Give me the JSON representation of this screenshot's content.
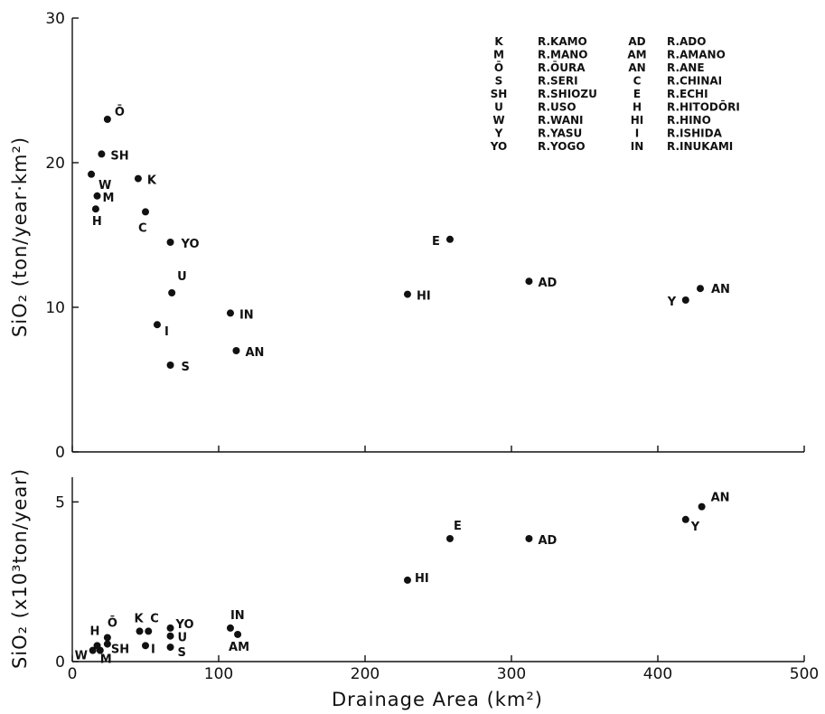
{
  "chart_data": [
    {
      "type": "scatter",
      "name": "top-panel",
      "ylabel": "SiO₂ (ton/year·km²)",
      "xlim": [
        0,
        500
      ],
      "ylim": [
        0,
        30
      ],
      "x_ticks": [
        "0",
        "100",
        "200",
        "300",
        "400",
        "500"
      ],
      "y_ticks": [
        "0",
        "10",
        "20",
        "30"
      ],
      "grid": false,
      "points": [
        {
          "label": "Ō",
          "x": 24,
          "y": 23.0
        },
        {
          "label": "SH",
          "x": 20,
          "y": 20.6
        },
        {
          "label": "W",
          "x": 13,
          "y": 19.2
        },
        {
          "label": "K",
          "x": 45,
          "y": 18.9
        },
        {
          "label": "M",
          "x": 17,
          "y": 17.7
        },
        {
          "label": "H",
          "x": 16,
          "y": 16.8
        },
        {
          "label": "C",
          "x": 50,
          "y": 16.6
        },
        {
          "label": "YO",
          "x": 67,
          "y": 14.5
        },
        {
          "label": "E",
          "x": 258,
          "y": 14.7
        },
        {
          "label": "AD",
          "x": 312,
          "y": 11.8
        },
        {
          "label": "AN",
          "x": 429,
          "y": 11.3
        },
        {
          "label": "U",
          "x": 68,
          "y": 11.0
        },
        {
          "label": "HI",
          "x": 229,
          "y": 10.9
        },
        {
          "label": "Y",
          "x": 419,
          "y": 10.5
        },
        {
          "label": "IN",
          "x": 108,
          "y": 9.6
        },
        {
          "label": "I",
          "x": 58,
          "y": 8.8
        },
        {
          "label": "AN",
          "x": 112,
          "y": 7.0
        },
        {
          "label": "S",
          "x": 67,
          "y": 6.0
        }
      ],
      "legend": {
        "placement": "top-right",
        "entries": [
          {
            "code": "K",
            "river": "R.KAMO"
          },
          {
            "code": "M",
            "river": "R.MANO"
          },
          {
            "code": "Ō",
            "river": "R.ŌURA"
          },
          {
            "code": "S",
            "river": "R.SERI"
          },
          {
            "code": "SH",
            "river": "R.SHIOZU"
          },
          {
            "code": "U",
            "river": "R.USO"
          },
          {
            "code": "W",
            "river": "R.WANI"
          },
          {
            "code": "Y",
            "river": "R.YASU"
          },
          {
            "code": "YO",
            "river": "R.YOGO"
          },
          {
            "code": "AD",
            "river": "R.ADO"
          },
          {
            "code": "AM",
            "river": "R.AMANO"
          },
          {
            "code": "AN",
            "river": "R.ANE"
          },
          {
            "code": "C",
            "river": "R.CHINAI"
          },
          {
            "code": "E",
            "river": "R.ECHI"
          },
          {
            "code": "H",
            "river": "R.HITODŌRI"
          },
          {
            "code": "HI",
            "river": "R.HINO"
          },
          {
            "code": "I",
            "river": "R.ISHIDA"
          },
          {
            "code": "IN",
            "river": "R.INUKAMI"
          }
        ]
      }
    },
    {
      "type": "scatter",
      "name": "bottom-panel",
      "xlabel": "Drainage Area (km²)",
      "ylabel": "SiO₂ (x10³ton/year)",
      "xlim": [
        0,
        500
      ],
      "ylim": [
        0,
        6
      ],
      "x_ticks": [
        "0",
        "100",
        "200",
        "300",
        "400",
        "500"
      ],
      "y_ticks": [
        "0",
        "5"
      ],
      "grid": false,
      "points": [
        {
          "label": "AN",
          "x": 430,
          "y": 4.85
        },
        {
          "label": "Y",
          "x": 419,
          "y": 4.45
        },
        {
          "label": "E",
          "x": 258,
          "y": 3.85
        },
        {
          "label": "AD",
          "x": 312,
          "y": 3.85
        },
        {
          "label": "HI",
          "x": 229,
          "y": 2.55
        },
        {
          "label": "IN",
          "x": 108,
          "y": 1.05
        },
        {
          "label": "AM",
          "x": 113,
          "y": 0.85
        },
        {
          "label": "YO",
          "x": 67,
          "y": 1.05
        },
        {
          "label": "U",
          "x": 67,
          "y": 0.8
        },
        {
          "label": "S",
          "x": 67,
          "y": 0.45
        },
        {
          "label": "K",
          "x": 46,
          "y": 0.95
        },
        {
          "label": "C",
          "x": 52,
          "y": 0.95
        },
        {
          "label": "I",
          "x": 50,
          "y": 0.5
        },
        {
          "label": "Ō",
          "x": 24,
          "y": 0.75
        },
        {
          "label": "SH",
          "x": 24,
          "y": 0.55
        },
        {
          "label": "H",
          "x": 17,
          "y": 0.5
        },
        {
          "label": "W",
          "x": 14,
          "y": 0.35
        },
        {
          "label": "M",
          "x": 19,
          "y": 0.35
        }
      ]
    }
  ]
}
